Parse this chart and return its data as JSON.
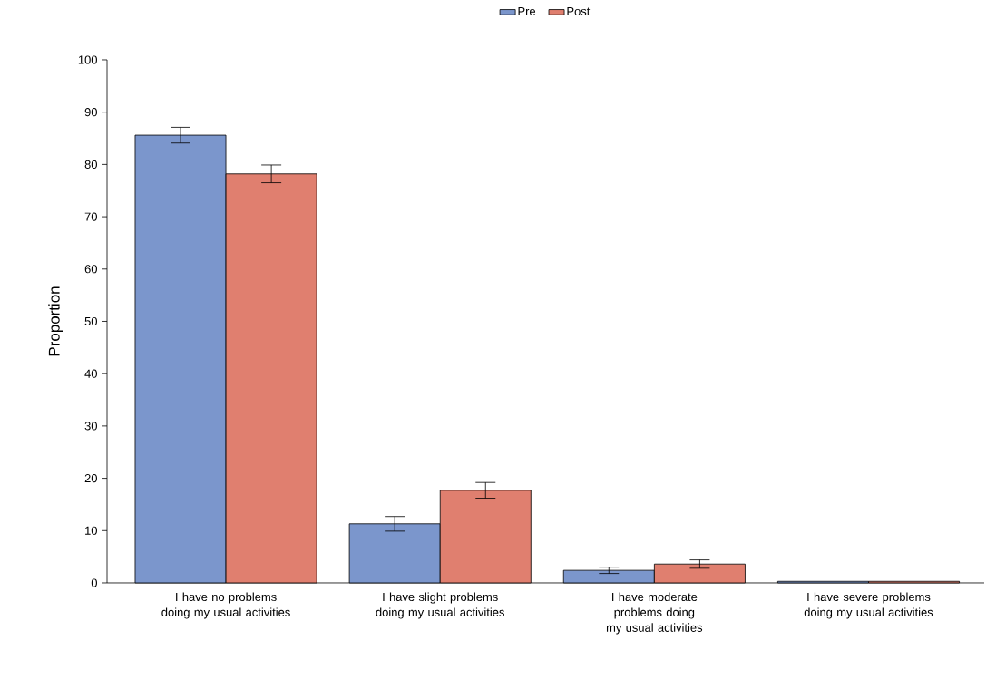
{
  "chart_data": {
    "type": "bar",
    "ylabel": "Proportion",
    "categories": [
      "I have no problems doing my usual activities",
      "I have slight problems doing my usual activities",
      "I have moderate problems doing my usual activities",
      "I have severe problems doing my usual activities"
    ],
    "series": [
      {
        "name": "Pre",
        "color": "#7b96cc",
        "values": [
          85.6,
          11.3,
          2.4,
          0.3
        ],
        "errors": [
          1.5,
          1.4,
          0.6,
          null
        ]
      },
      {
        "name": "Post",
        "color": "#e07f6f",
        "values": [
          78.2,
          17.7,
          3.6,
          0.3
        ],
        "errors": [
          1.7,
          1.5,
          0.8,
          null
        ]
      }
    ],
    "ylim": [
      0,
      100
    ],
    "yticks": [
      0,
      10,
      20,
      30,
      40,
      50,
      60,
      70,
      80,
      90,
      100
    ],
    "grid": false,
    "legend": "top"
  }
}
